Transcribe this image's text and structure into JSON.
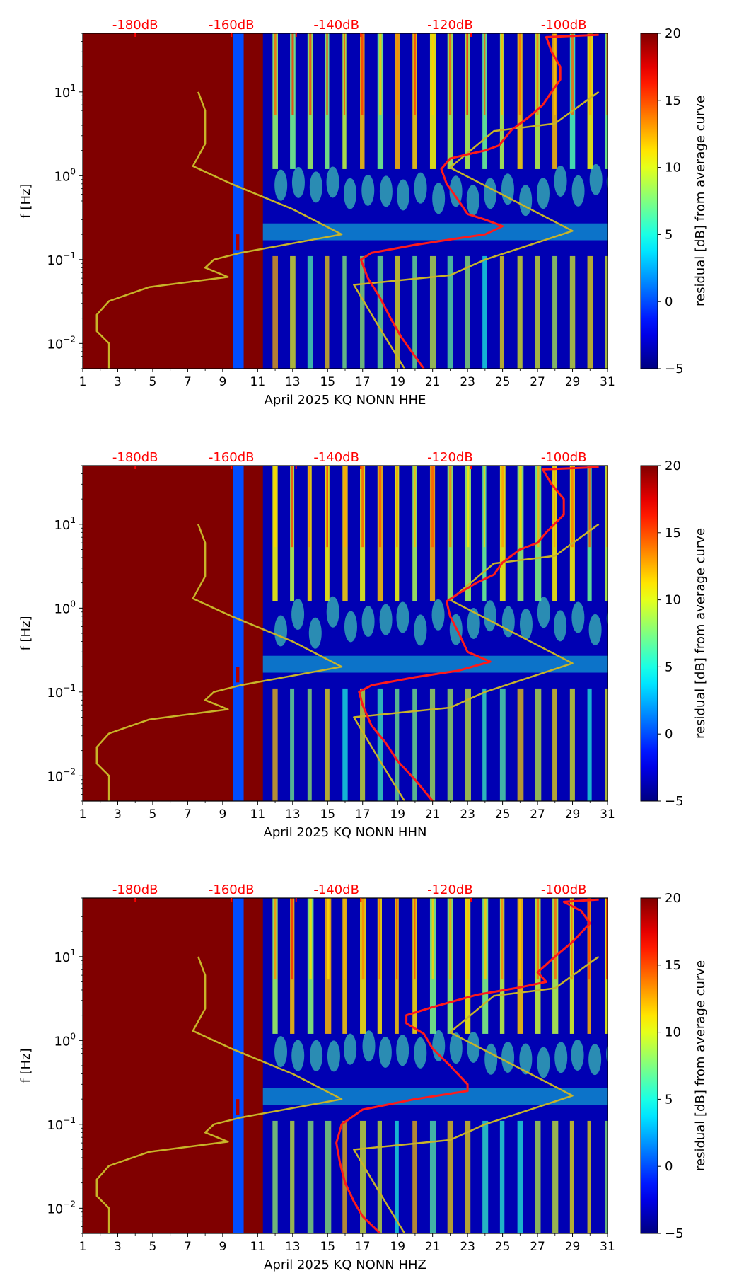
{
  "chart_data": [
    {
      "type": "heatmap",
      "xlabel": "April 2025 KQ NONN  HHE",
      "ylabel": "f [Hz]",
      "colorbar_label": "residual [dB] from average curve",
      "x_ticks": [
        "1",
        "3",
        "5",
        "7",
        "9",
        "11",
        "13",
        "15",
        "17",
        "19",
        "21",
        "23",
        "25",
        "27",
        "29",
        "31"
      ],
      "xlim": [
        1,
        31
      ],
      "y_scale": "log",
      "ylim": [
        0.005,
        50
      ],
      "y_ticks": [
        {
          "base": "10",
          "exp": "1"
        },
        {
          "base": "10",
          "exp": "0"
        },
        {
          "base": "10",
          "exp": "−1"
        },
        {
          "base": "10",
          "exp": "−2"
        }
      ],
      "top_ticks": [
        "-180dB",
        "-160dB",
        "-140dB",
        "-120dB",
        "-100dB"
      ],
      "colorbar_ticks": [
        "20",
        "15",
        "10",
        "5",
        "0",
        "−5"
      ],
      "clim": [
        -5,
        20
      ],
      "colormap": "jet",
      "saturated_until_day": 9.6,
      "data_start_day": 11.3,
      "avg_curve": [
        [
          20.5,
          0.005
        ],
        [
          19.8,
          0.008
        ],
        [
          19.2,
          0.012
        ],
        [
          18.6,
          0.02
        ],
        [
          18.0,
          0.035
        ],
        [
          17.3,
          0.06
        ],
        [
          16.9,
          0.1
        ],
        [
          17.5,
          0.12
        ],
        [
          20.0,
          0.15
        ],
        [
          22.5,
          0.18
        ],
        [
          24.0,
          0.2
        ],
        [
          25.0,
          0.25
        ],
        [
          24.0,
          0.3
        ],
        [
          23.0,
          0.35
        ],
        [
          22.5,
          0.5
        ],
        [
          21.8,
          0.8
        ],
        [
          21.5,
          1.2
        ],
        [
          22.0,
          1.6
        ],
        [
          23.0,
          1.8
        ],
        [
          24.0,
          2.0
        ],
        [
          24.8,
          2.3
        ],
        [
          25.5,
          3.5
        ],
        [
          26.5,
          5.0
        ],
        [
          27.3,
          7.0
        ],
        [
          27.8,
          10.0
        ],
        [
          28.3,
          14.0
        ],
        [
          28.3,
          20.0
        ],
        [
          27.8,
          30.0
        ],
        [
          27.5,
          45.0
        ],
        [
          30.5,
          48.0
        ]
      ],
      "nlnm_curve": [
        [
          2.5,
          0.005
        ],
        [
          2.5,
          0.01
        ],
        [
          1.8,
          0.014
        ],
        [
          1.8,
          0.022
        ],
        [
          2.5,
          0.032
        ],
        [
          4.8,
          0.047
        ],
        [
          9.3,
          0.062
        ],
        [
          8.0,
          0.08
        ],
        [
          8.5,
          0.1
        ],
        [
          10.0,
          0.12
        ],
        [
          15.8,
          0.2
        ],
        [
          13.0,
          0.4
        ],
        [
          9.5,
          0.8
        ],
        [
          7.3,
          1.3
        ],
        [
          8.0,
          2.4
        ],
        [
          8.0,
          6.0
        ],
        [
          7.6,
          10.0
        ]
      ],
      "nhnm_curve": [
        [
          19.4,
          0.005
        ],
        [
          18.0,
          0.015
        ],
        [
          16.5,
          0.05
        ],
        [
          22.0,
          0.065
        ],
        [
          24.0,
          0.1
        ],
        [
          27.0,
          0.16
        ],
        [
          29.0,
          0.22
        ],
        [
          22.0,
          1.25
        ],
        [
          24.5,
          3.4
        ],
        [
          28.0,
          4.2
        ],
        [
          30.5,
          10.0
        ]
      ]
    },
    {
      "type": "heatmap",
      "xlabel": "April 2025 KQ NONN  HHN",
      "ylabel": "f [Hz]",
      "colorbar_label": "residual [dB] from average curve",
      "x_ticks": [
        "1",
        "3",
        "5",
        "7",
        "9",
        "11",
        "13",
        "15",
        "17",
        "19",
        "21",
        "23",
        "25",
        "27",
        "29",
        "31"
      ],
      "xlim": [
        1,
        31
      ],
      "y_scale": "log",
      "ylim": [
        0.005,
        50
      ],
      "y_ticks": [
        {
          "base": "10",
          "exp": "1"
        },
        {
          "base": "10",
          "exp": "0"
        },
        {
          "base": "10",
          "exp": "−1"
        },
        {
          "base": "10",
          "exp": "−2"
        }
      ],
      "top_ticks": [
        "-180dB",
        "-160dB",
        "-140dB",
        "-120dB",
        "-100dB"
      ],
      "colorbar_ticks": [
        "20",
        "15",
        "10",
        "5",
        "0",
        "−5"
      ],
      "clim": [
        -5,
        20
      ],
      "colormap": "jet",
      "saturated_until_day": 9.6,
      "data_start_day": 11.3,
      "avg_curve": [
        [
          21.0,
          0.005
        ],
        [
          20.0,
          0.009
        ],
        [
          19.0,
          0.015
        ],
        [
          18.3,
          0.025
        ],
        [
          17.5,
          0.04
        ],
        [
          17.0,
          0.07
        ],
        [
          16.8,
          0.1
        ],
        [
          17.5,
          0.12
        ],
        [
          20.0,
          0.15
        ],
        [
          22.5,
          0.18
        ],
        [
          24.3,
          0.23
        ],
        [
          23.0,
          0.3
        ],
        [
          22.5,
          0.5
        ],
        [
          22.0,
          0.8
        ],
        [
          21.8,
          1.2
        ],
        [
          22.5,
          1.5
        ],
        [
          23.5,
          2.0
        ],
        [
          24.5,
          2.5
        ],
        [
          25.0,
          3.5
        ],
        [
          26.0,
          5.0
        ],
        [
          27.0,
          6.0
        ],
        [
          27.5,
          8.0
        ],
        [
          28.5,
          13.0
        ],
        [
          28.5,
          20.0
        ],
        [
          27.8,
          30.0
        ],
        [
          27.3,
          45.0
        ],
        [
          30.5,
          48.0
        ]
      ],
      "nlnm_curve": [
        [
          2.5,
          0.005
        ],
        [
          2.5,
          0.01
        ],
        [
          1.8,
          0.014
        ],
        [
          1.8,
          0.022
        ],
        [
          2.5,
          0.032
        ],
        [
          4.8,
          0.047
        ],
        [
          9.3,
          0.062
        ],
        [
          8.0,
          0.08
        ],
        [
          8.5,
          0.1
        ],
        [
          10.0,
          0.12
        ],
        [
          15.8,
          0.2
        ],
        [
          13.0,
          0.4
        ],
        [
          9.5,
          0.8
        ],
        [
          7.3,
          1.3
        ],
        [
          8.0,
          2.4
        ],
        [
          8.0,
          6.0
        ],
        [
          7.6,
          10.0
        ]
      ],
      "nhnm_curve": [
        [
          19.4,
          0.005
        ],
        [
          18.0,
          0.015
        ],
        [
          16.5,
          0.05
        ],
        [
          22.0,
          0.065
        ],
        [
          24.0,
          0.1
        ],
        [
          27.0,
          0.16
        ],
        [
          29.0,
          0.22
        ],
        [
          22.0,
          1.25
        ],
        [
          24.5,
          3.4
        ],
        [
          28.0,
          4.2
        ],
        [
          30.5,
          10.0
        ]
      ]
    },
    {
      "type": "heatmap",
      "xlabel": "April 2025 KQ NONN  HHZ",
      "ylabel": "f [Hz]",
      "colorbar_label": "residual [dB] from average curve",
      "x_ticks": [
        "1",
        "3",
        "5",
        "7",
        "9",
        "11",
        "13",
        "15",
        "17",
        "19",
        "21",
        "23",
        "25",
        "27",
        "29",
        "31"
      ],
      "xlim": [
        1,
        31
      ],
      "y_scale": "log",
      "ylim": [
        0.005,
        50
      ],
      "y_ticks": [
        {
          "base": "10",
          "exp": "1"
        },
        {
          "base": "10",
          "exp": "0"
        },
        {
          "base": "10",
          "exp": "−1"
        },
        {
          "base": "10",
          "exp": "−2"
        }
      ],
      "top_ticks": [
        "-180dB",
        "-160dB",
        "-140dB",
        "-120dB",
        "-100dB"
      ],
      "colorbar_ticks": [
        "20",
        "15",
        "10",
        "5",
        "0",
        "−5"
      ],
      "clim": [
        -5,
        20
      ],
      "colormap": "jet",
      "saturated_until_day": 9.6,
      "data_start_day": 11.3,
      "avg_curve": [
        [
          18.0,
          0.005
        ],
        [
          17.0,
          0.008
        ],
        [
          16.5,
          0.012
        ],
        [
          16.0,
          0.02
        ],
        [
          15.7,
          0.035
        ],
        [
          15.5,
          0.06
        ],
        [
          15.8,
          0.1
        ],
        [
          17.0,
          0.15
        ],
        [
          20.0,
          0.2
        ],
        [
          23.0,
          0.25
        ],
        [
          23.0,
          0.3
        ],
        [
          22.0,
          0.5
        ],
        [
          21.0,
          0.8
        ],
        [
          20.5,
          1.2
        ],
        [
          19.5,
          1.6
        ],
        [
          19.5,
          2.0
        ],
        [
          21.0,
          2.5
        ],
        [
          23.5,
          3.5
        ],
        [
          26.0,
          4.3
        ],
        [
          27.5,
          5.0
        ],
        [
          27.0,
          6.5
        ],
        [
          28.0,
          10.0
        ],
        [
          29.0,
          15.0
        ],
        [
          30.0,
          25.0
        ],
        [
          29.5,
          35.0
        ],
        [
          28.5,
          45.0
        ],
        [
          30.5,
          48.0
        ]
      ],
      "nlnm_curve": [
        [
          2.5,
          0.005
        ],
        [
          2.5,
          0.01
        ],
        [
          1.8,
          0.014
        ],
        [
          1.8,
          0.022
        ],
        [
          2.5,
          0.032
        ],
        [
          4.8,
          0.047
        ],
        [
          9.3,
          0.062
        ],
        [
          8.0,
          0.08
        ],
        [
          8.5,
          0.1
        ],
        [
          10.0,
          0.12
        ],
        [
          15.8,
          0.2
        ],
        [
          13.0,
          0.4
        ],
        [
          9.5,
          0.8
        ],
        [
          7.3,
          1.3
        ],
        [
          8.0,
          2.4
        ],
        [
          8.0,
          6.0
        ],
        [
          7.6,
          10.0
        ]
      ],
      "nhnm_curve": [
        [
          19.4,
          0.005
        ],
        [
          18.0,
          0.015
        ],
        [
          16.5,
          0.05
        ],
        [
          22.0,
          0.065
        ],
        [
          24.0,
          0.1
        ],
        [
          27.0,
          0.16
        ],
        [
          29.0,
          0.22
        ],
        [
          22.0,
          1.25
        ],
        [
          24.5,
          3.4
        ],
        [
          28.0,
          4.2
        ],
        [
          30.5,
          10.0
        ]
      ]
    }
  ],
  "colors": {
    "saturated": "#800000",
    "avg_curve": "#ff1a1a",
    "noise_model": "#c8b428",
    "top_tick_text": "#ff0000"
  }
}
